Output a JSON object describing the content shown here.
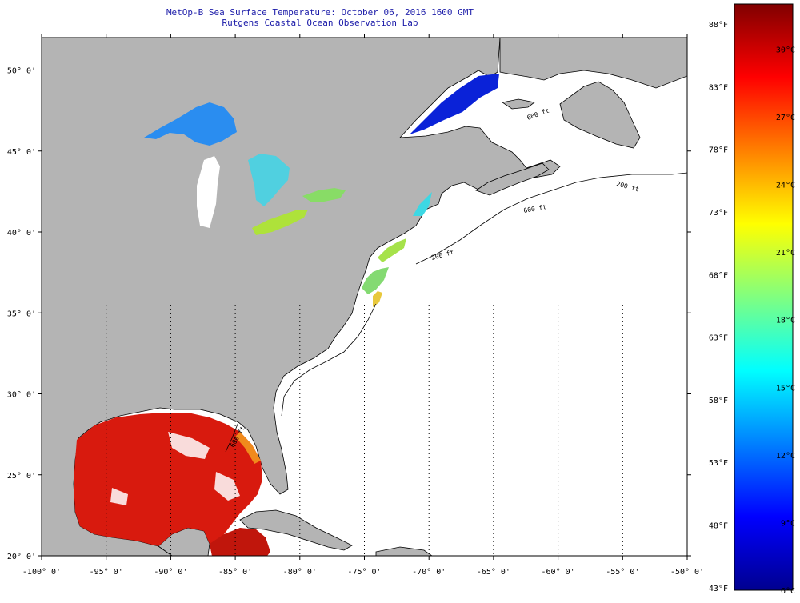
{
  "title": {
    "line1": "MetOp-B Sea Surface Temperature:  October 06, 2016 1600 GMT",
    "line2": "Rutgens Coastal Ocean Observation Lab"
  },
  "map": {
    "lon_range": [
      -100,
      -50
    ],
    "lat_range": [
      20,
      52
    ],
    "lon_ticks": [
      -100,
      -95,
      -90,
      -85,
      -80,
      -75,
      -70,
      -65,
      -60,
      -55,
      -50
    ],
    "lon_labels": [
      "-100° 0'",
      "-95° 0'",
      "-90° 0'",
      "-85° 0'",
      "-80° 0'",
      "-75° 0'",
      "-70° 0'",
      "-65° 0'",
      "-60° 0'",
      "-55° 0'",
      "-50° 0'"
    ],
    "lat_ticks": [
      20,
      25,
      30,
      35,
      40,
      45,
      50
    ],
    "lat_labels": [
      "20° 0'",
      "25° 0'",
      "30° 0'",
      "35° 0'",
      "40° 0'",
      "45° 0'",
      "50° 0'"
    ],
    "gridlines": "dotted",
    "land_color": "#b4b4b4",
    "ocean_color": "#ffffff",
    "isobath_labels": [
      "200 ft",
      "600 ft"
    ]
  },
  "colorbar": {
    "range_c": [
      6,
      32
    ],
    "fahrenheit_labels": [
      "88°F",
      "83°F",
      "78°F",
      "73°F",
      "68°F",
      "63°F",
      "58°F",
      "53°F",
      "48°F",
      "43°F"
    ],
    "celsius_labels": [
      "30°C",
      "27°C",
      "24°C",
      "21°C",
      "18°C",
      "15°C",
      "12°C",
      "9°C",
      "6°C"
    ],
    "colors": [
      "#00008f",
      "#0000ff",
      "#0080ff",
      "#00ffff",
      "#80ff80",
      "#ffff00",
      "#ff8000",
      "#ff0000",
      "#800000"
    ]
  }
}
